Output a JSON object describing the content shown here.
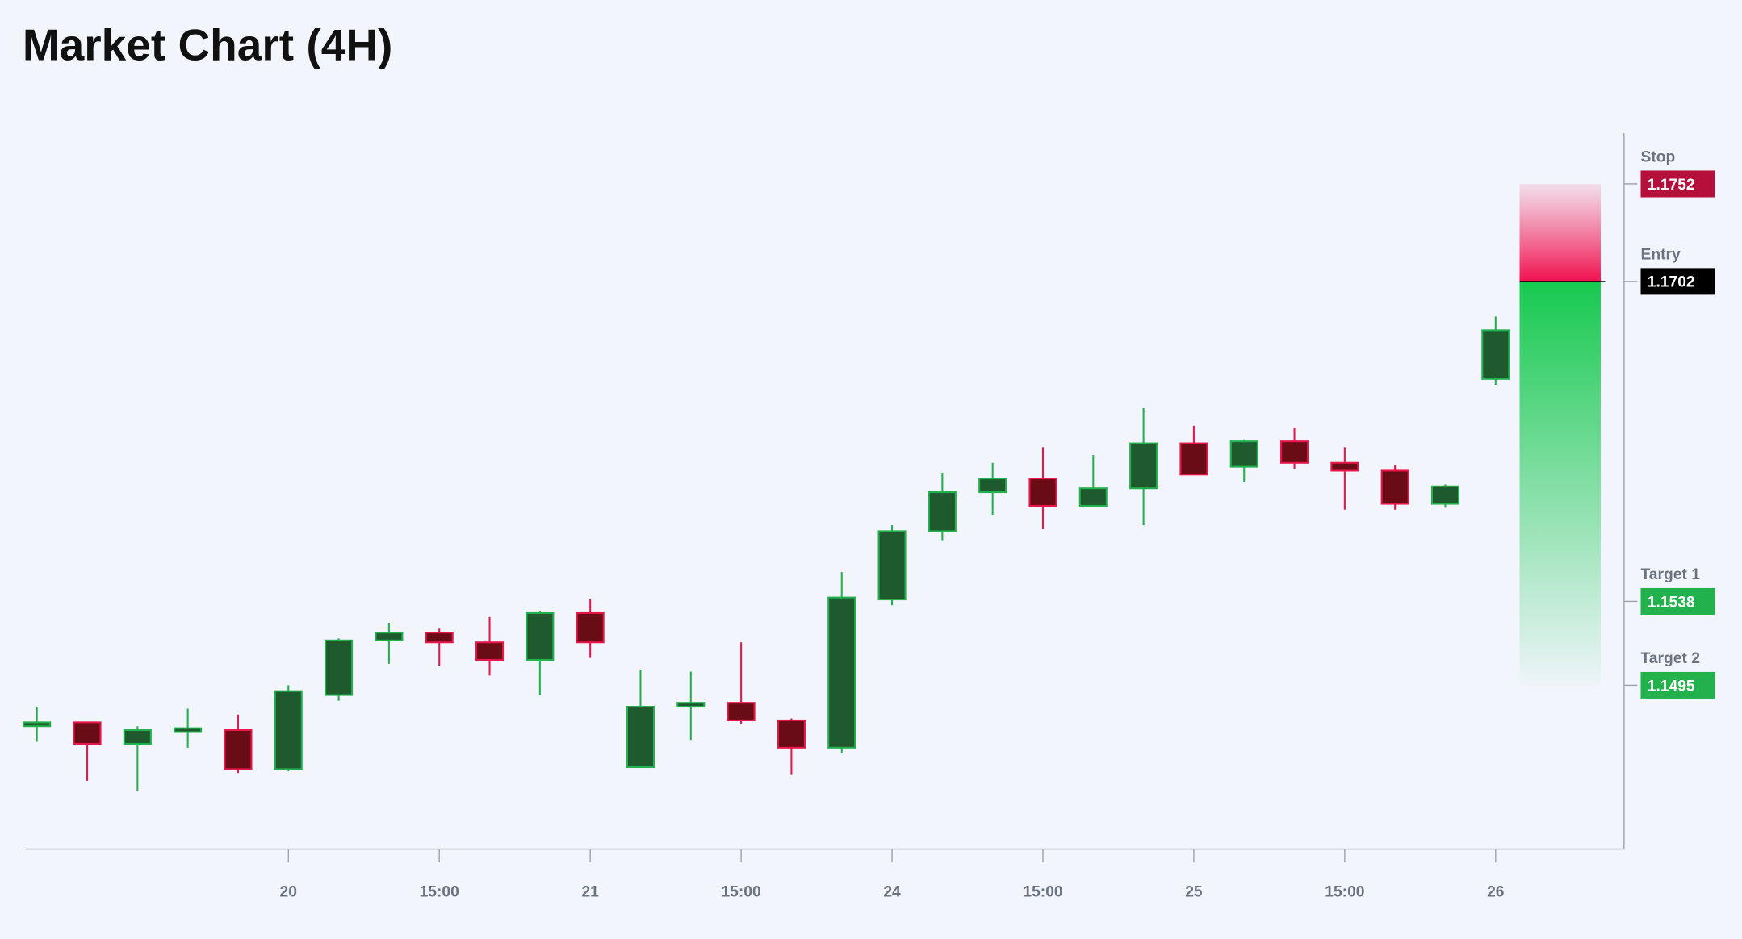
{
  "chart_data": {
    "type": "candlestick",
    "title": "Market Chart (4H)",
    "categories": [
      null,
      null,
      null,
      null,
      null,
      "20",
      null,
      null,
      "15:00",
      null,
      null,
      "21",
      null,
      null,
      "15:00",
      null,
      null,
      "24",
      null,
      null,
      "15:00",
      null,
      null,
      "25",
      null,
      null,
      "15:00",
      null,
      null,
      "26"
    ],
    "open": [
      1.1474,
      1.1476,
      1.1465,
      1.1471,
      1.1472,
      1.1452,
      1.149,
      1.1518,
      1.1522,
      1.1517,
      1.1508,
      1.1532,
      1.1453,
      1.1484,
      1.1486,
      1.1477,
      1.1463,
      1.1539,
      1.1574,
      1.1594,
      1.1601,
      1.1587,
      1.1596,
      1.1619,
      1.1607,
      1.162,
      1.1609,
      1.1605,
      1.1588,
      1.1652
    ],
    "high": [
      1.1484,
      1.1476,
      1.1474,
      1.1483,
      1.148,
      1.1495,
      1.1519,
      1.1527,
      1.1524,
      1.153,
      1.1533,
      1.1539,
      1.1503,
      1.1502,
      1.1517,
      1.1478,
      1.1553,
      1.1577,
      1.1604,
      1.1609,
      1.1617,
      1.1613,
      1.1637,
      1.1628,
      1.1621,
      1.1627,
      1.1617,
      1.1608,
      1.1598,
      1.1684
    ],
    "low": [
      1.1466,
      1.1446,
      1.1441,
      1.1463,
      1.145,
      1.1451,
      1.1487,
      1.1506,
      1.1505,
      1.15,
      1.149,
      1.1509,
      1.1453,
      1.1467,
      1.1475,
      1.1449,
      1.146,
      1.1536,
      1.1569,
      1.1582,
      1.1575,
      1.1587,
      1.1577,
      1.1603,
      1.1599,
      1.1606,
      1.1585,
      1.1585,
      1.1586,
      1.1649
    ],
    "close": [
      1.1476,
      1.1465,
      1.1472,
      1.1473,
      1.1452,
      1.1492,
      1.1518,
      1.1522,
      1.1517,
      1.1508,
      1.1532,
      1.1517,
      1.1484,
      1.1486,
      1.1477,
      1.1463,
      1.154,
      1.1574,
      1.1594,
      1.1601,
      1.1587,
      1.1596,
      1.1619,
      1.1603,
      1.162,
      1.1609,
      1.1605,
      1.1588,
      1.1597,
      1.1677
    ],
    "up_color": "#22b14c",
    "down_color": "#e8164a",
    "ylim": [
      1.1411,
      1.1778
    ],
    "levels": [
      {
        "name": "Stop",
        "value": 1.1752,
        "color": "#b5103c"
      },
      {
        "name": "Entry",
        "value": 1.1702,
        "color": "#000000"
      },
      {
        "name": "Target 1",
        "value": 1.1538,
        "color": "#22b14c"
      },
      {
        "name": "Target 2",
        "value": 1.1495,
        "color": "#22b14c"
      }
    ]
  }
}
